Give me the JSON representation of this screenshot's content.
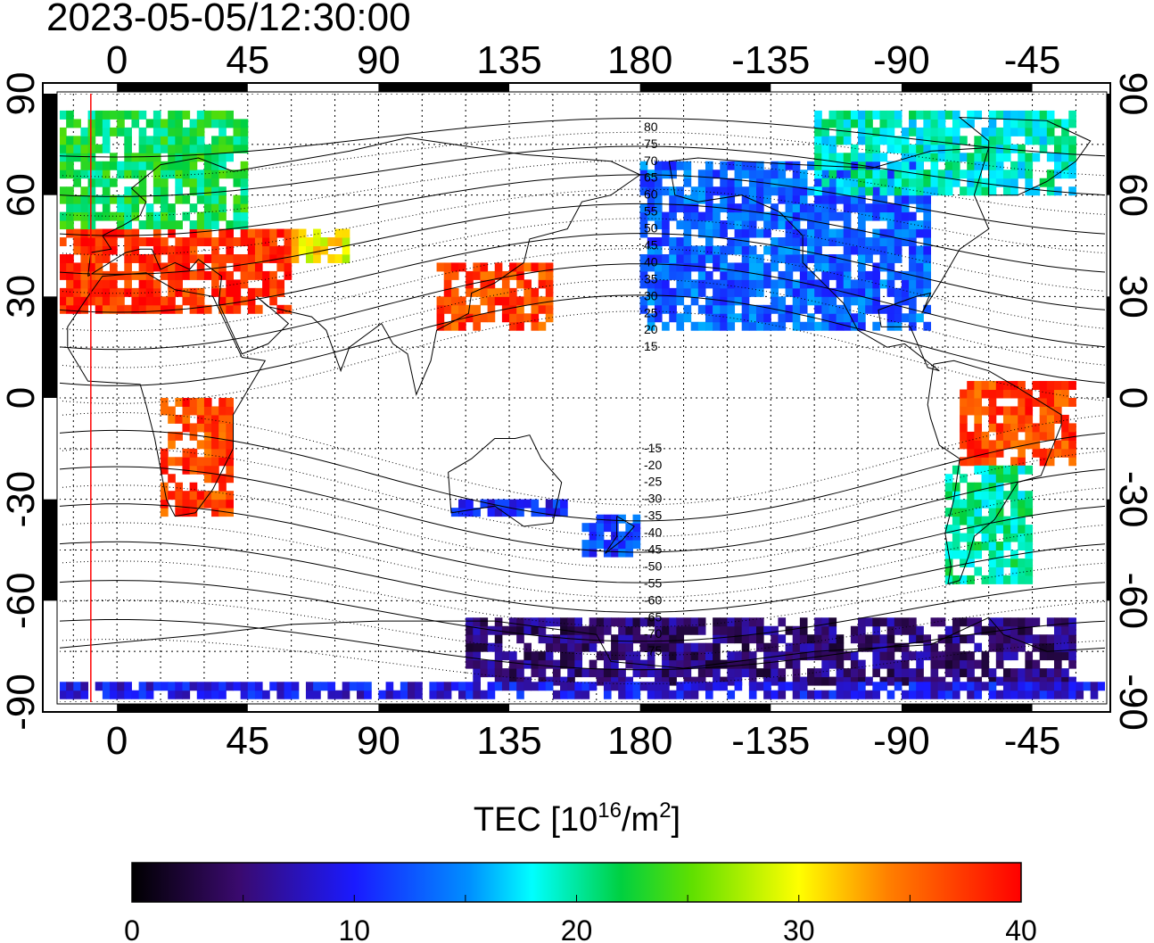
{
  "timestamp": "2023-05-05/12:30:00",
  "map": {
    "lon_ticks_top": [
      "0",
      "45",
      "90",
      "135",
      "180",
      "-135",
      "-90",
      "-45"
    ],
    "lon_ticks_bottom": [
      "0",
      "45",
      "90",
      "135",
      "180",
      "-135",
      "-90",
      "-45"
    ],
    "lat_ticks_left": [
      "90",
      "60",
      "30",
      "0",
      "-30",
      "-60",
      "-90"
    ],
    "lat_ticks_right": [
      "90",
      "60",
      "30",
      "0",
      "-30",
      "-60",
      "-90"
    ],
    "lon_range": [
      -20,
      340
    ],
    "lat_range": [
      -90,
      90
    ],
    "grid_spacing_deg": 15,
    "grid": true,
    "terminator_lon": -9,
    "contour_labels": [
      "80",
      "75",
      "70",
      "65",
      "60",
      "55",
      "50",
      "45",
      "40",
      "35",
      "30",
      "25",
      "20",
      "15",
      "-15",
      "-20",
      "-25",
      "-30",
      "-35",
      "-40",
      "-45",
      "-50",
      "-55",
      "-60",
      "-65",
      "-70",
      "-75"
    ],
    "contour_label_lats": [
      80,
      75,
      70,
      65,
      60,
      55,
      50,
      45,
      40,
      35,
      30,
      25,
      20,
      15,
      -15,
      -20,
      -25,
      -30,
      -35,
      -40,
      -45,
      -50,
      -55,
      -60,
      -65,
      -70,
      -75
    ]
  },
  "colorbar": {
    "title_main": "TEC  [10",
    "title_exp": "16",
    "title_mid": "/m",
    "title_exp2": "2",
    "title_end": "]",
    "ticks": [
      "0",
      "10",
      "20",
      "30",
      "40"
    ],
    "min": 0,
    "max": 40
  },
  "chart_data": {
    "type": "heatmap",
    "title": "2023-05-05/12:30:00",
    "xlabel": "",
    "ylabel": "",
    "quantity": "TEC [10^16/m^2]",
    "xlim": [
      -20,
      340
    ],
    "ylim": [
      -90,
      90
    ],
    "colorscale_range": [
      0,
      40
    ],
    "regions": [
      {
        "lon": [
          -20,
          60
        ],
        "lat": [
          25,
          50
        ],
        "tec": 38
      },
      {
        "lon": [
          -20,
          45
        ],
        "lat": [
          50,
          85
        ],
        "tec": 22
      },
      {
        "lon": [
          15,
          40
        ],
        "lat": [
          -35,
          0
        ],
        "tec": 37
      },
      {
        "lon": [
          110,
          150
        ],
        "lat": [
          20,
          40
        ],
        "tec": 37
      },
      {
        "lon": [
          60,
          80
        ],
        "lat": [
          40,
          50
        ],
        "tec": 30
      },
      {
        "lon": [
          160,
          180
        ],
        "lat": [
          -47,
          -35
        ],
        "tec": 12
      },
      {
        "lon": [
          115,
          155
        ],
        "lat": [
          -35,
          -30
        ],
        "tec": 10
      },
      {
        "lon": [
          180,
          280
        ],
        "lat": [
          20,
          70
        ],
        "tec": 13
      },
      {
        "lon": [
          240,
          330
        ],
        "lat": [
          60,
          85
        ],
        "tec": 19
      },
      {
        "lon": [
          290,
          330
        ],
        "lat": [
          -20,
          5
        ],
        "tec": 37
      },
      {
        "lon": [
          285,
          315
        ],
        "lat": [
          -55,
          -20
        ],
        "tec": 20
      },
      {
        "lon": [
          120,
          330
        ],
        "lat": [
          -85,
          -65
        ],
        "tec": 5
      },
      {
        "lon": [
          -20,
          340
        ],
        "lat": [
          -89,
          -86
        ],
        "tec": 9
      }
    ]
  }
}
